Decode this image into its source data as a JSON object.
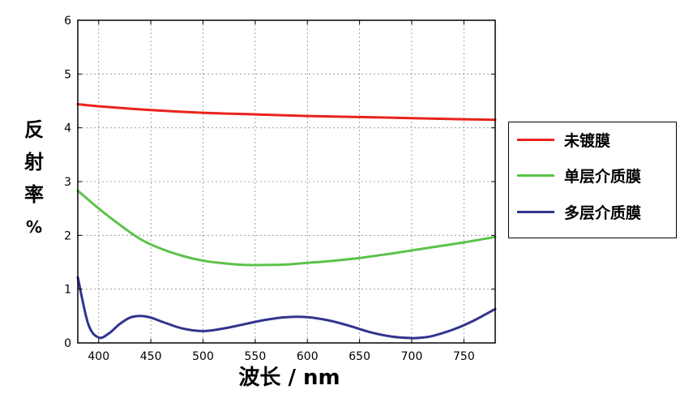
{
  "chart_data": {
    "type": "line",
    "xlabel": "波长 / nm",
    "ylabel_chars": [
      "反",
      "射",
      "率",
      "%"
    ],
    "xlim": [
      380,
      780
    ],
    "ylim": [
      0,
      6
    ],
    "xticks": [
      400,
      450,
      500,
      550,
      600,
      650,
      700,
      750
    ],
    "yticks": [
      0,
      1,
      2,
      3,
      4,
      5,
      6
    ],
    "grid": true,
    "legend_position": "right",
    "series": [
      {
        "name": "未镀膜",
        "color": "#e8231c",
        "x": [
          380,
          400,
          450,
          500,
          550,
          600,
          650,
          700,
          750,
          780
        ],
        "y": [
          4.44,
          4.4,
          4.33,
          4.28,
          4.25,
          4.22,
          4.2,
          4.18,
          4.16,
          4.15
        ]
      },
      {
        "name": "单层介质膜",
        "color": "#5cc24a",
        "x": [
          380,
          400,
          420,
          440,
          460,
          480,
          500,
          520,
          540,
          560,
          580,
          600,
          620,
          650,
          680,
          700,
          720,
          750,
          780
        ],
        "y": [
          2.83,
          2.5,
          2.2,
          1.93,
          1.75,
          1.62,
          1.53,
          1.48,
          1.45,
          1.45,
          1.46,
          1.49,
          1.52,
          1.58,
          1.66,
          1.72,
          1.78,
          1.87,
          1.97
        ]
      },
      {
        "name": "多层介质膜",
        "color": "#32348e",
        "x": [
          380,
          390,
          400,
          410,
          420,
          430,
          440,
          450,
          460,
          480,
          500,
          520,
          540,
          560,
          580,
          600,
          620,
          640,
          660,
          680,
          700,
          710,
          720,
          740,
          760,
          780
        ],
        "y": [
          1.22,
          0.35,
          0.1,
          0.18,
          0.35,
          0.47,
          0.5,
          0.47,
          0.4,
          0.27,
          0.22,
          0.27,
          0.35,
          0.43,
          0.48,
          0.48,
          0.42,
          0.32,
          0.2,
          0.12,
          0.09,
          0.1,
          0.13,
          0.25,
          0.42,
          0.63
        ]
      }
    ]
  }
}
